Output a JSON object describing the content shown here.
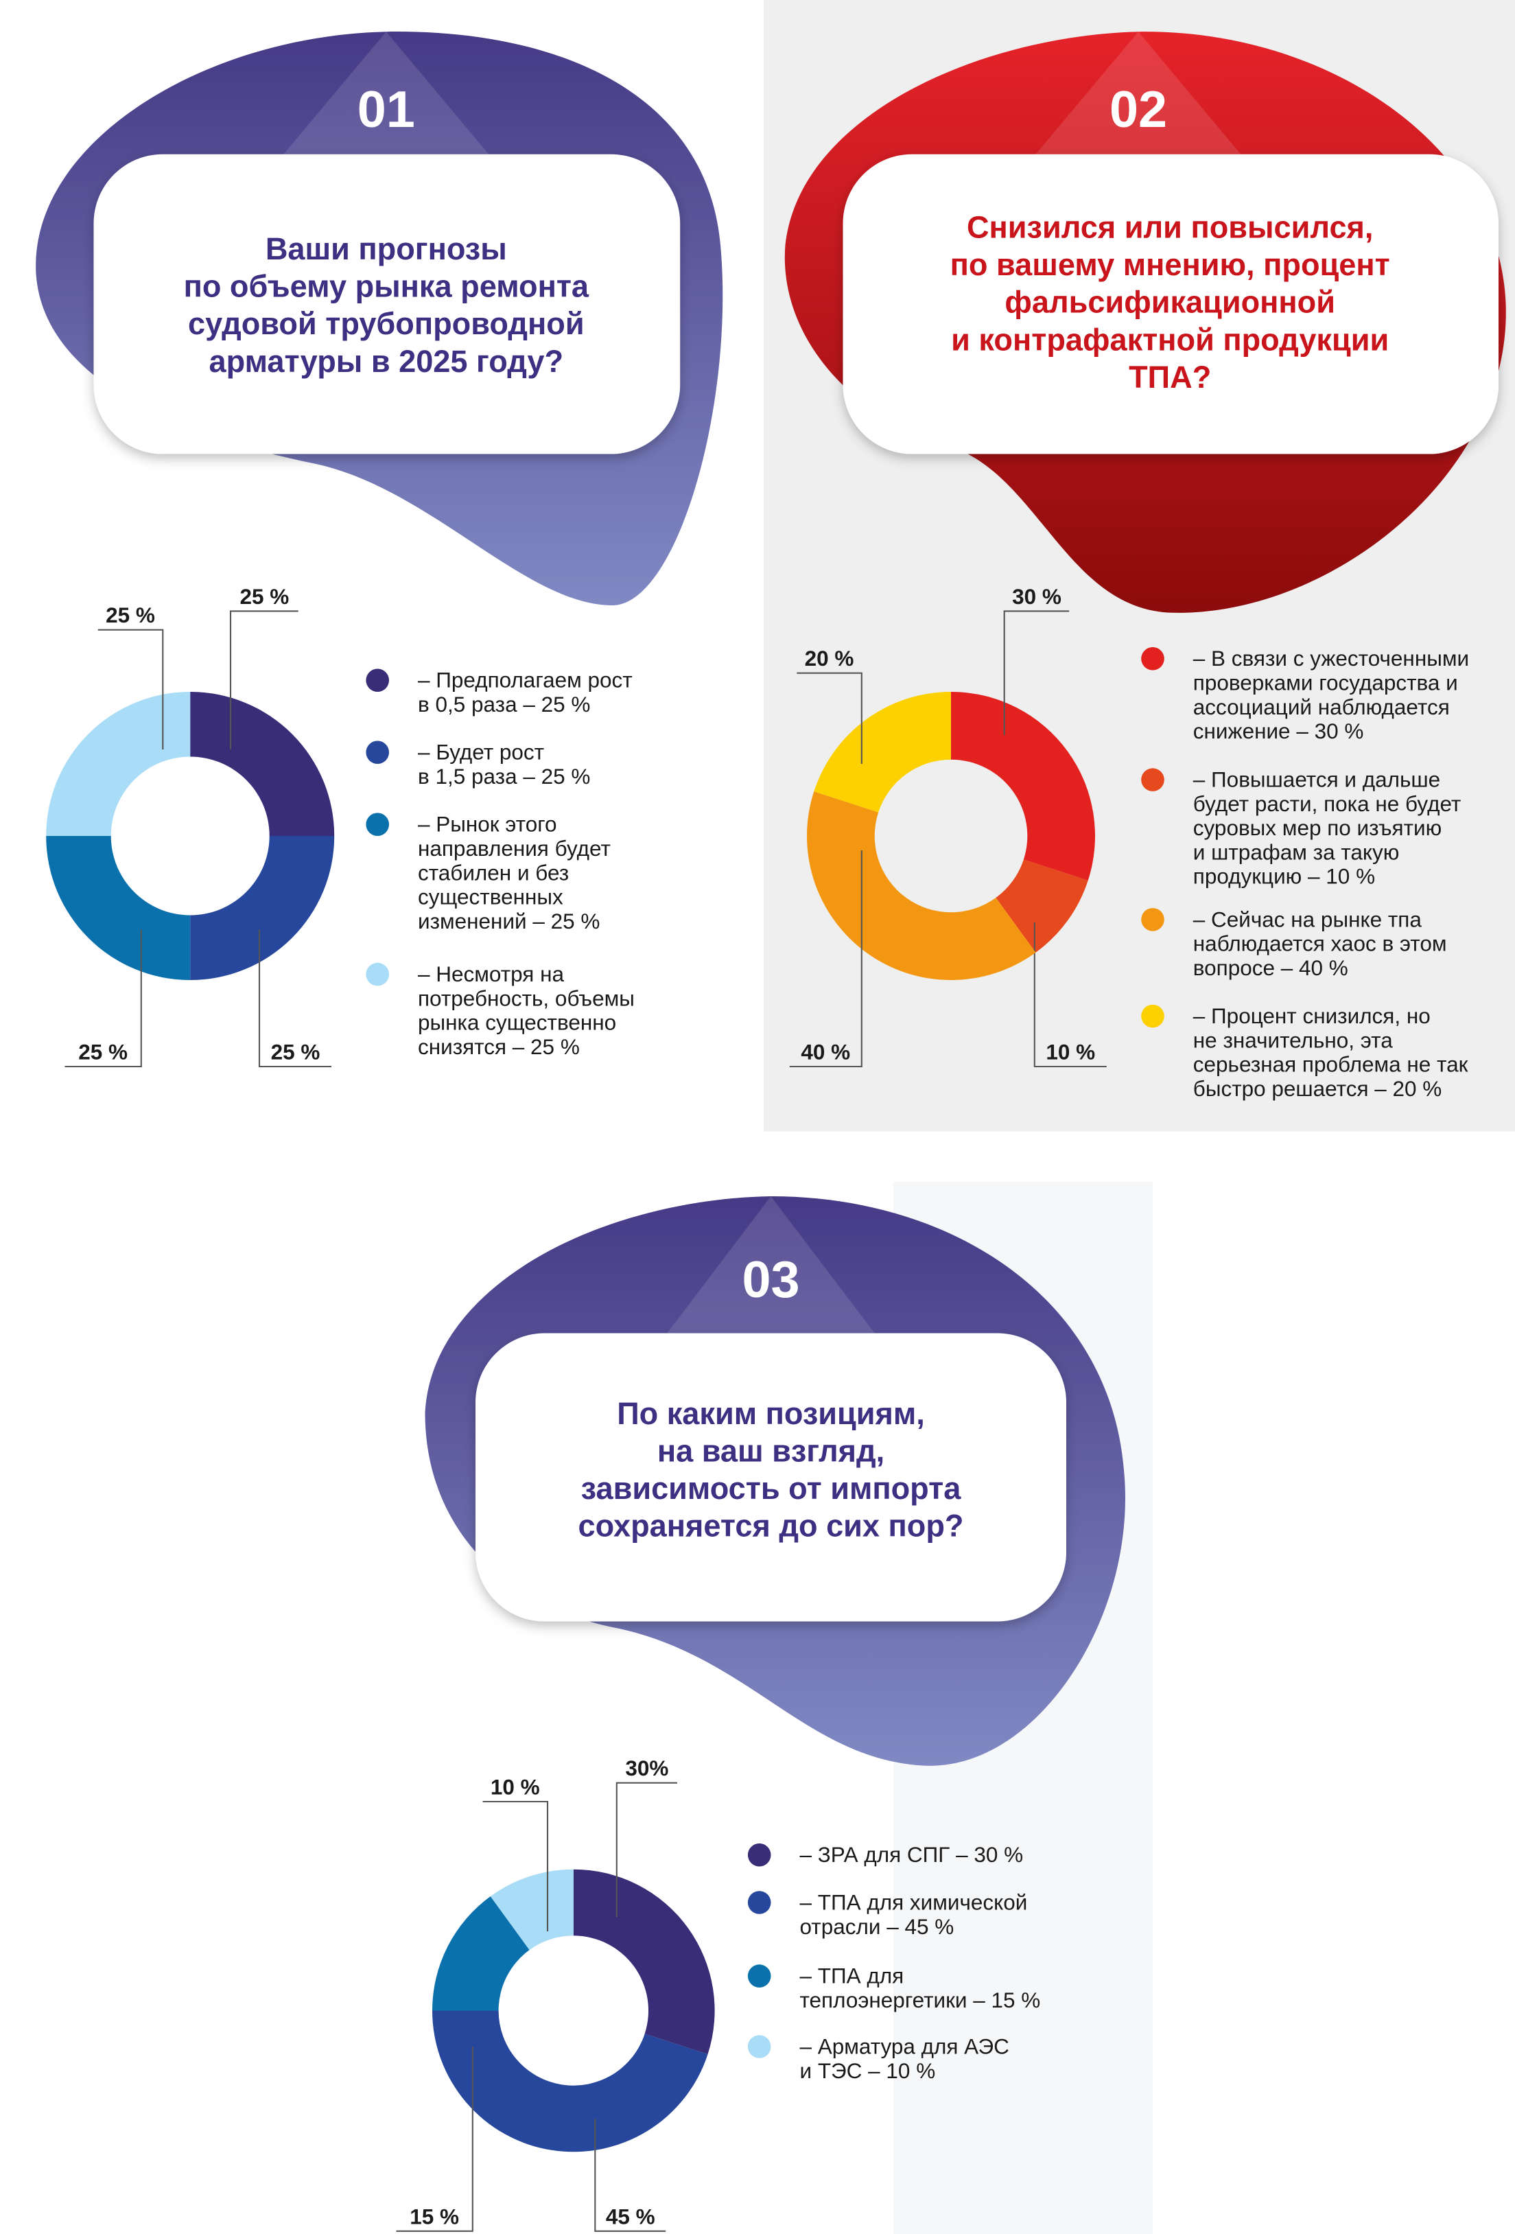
{
  "chart_data": [
    {
      "type": "pie",
      "number": "01",
      "title": "Ваши прогнозы\nпо объему рынка ремонта\nсудовой трубопроводной\nарматуры в 2025 году?",
      "categories": [
        "– Предполагаем рост\nв 0,5 раза – 25 %",
        "– Будет рост\nв 1,5 раза – 25 %",
        "– Рынок этого\nнаправления будет\nстабилен и без\nсущественных\nизменений – 25 %",
        "– Несмотря на\nпотребность, объемы\nрынка существенно\nснизятся – 25 %"
      ],
      "values": [
        25,
        25,
        25,
        25
      ],
      "value_labels": [
        "25 %",
        "25 %",
        "25 %",
        "25 %"
      ],
      "colors": [
        "#3a2d78",
        "#26479b",
        "#0a71ad",
        "#a9dcf6"
      ]
    },
    {
      "type": "pie",
      "number": "02",
      "title": "Снизился или повысился,\nпо вашему мнению, процент\nфальсификационной\nи контрафактной продукции\nТПА?",
      "categories": [
        "– В связи с ужесточенными\nпроверками государства и\nассоциаций наблюдается\nснижение – 30 %",
        "– Повышается и дальше\nбудет расти, пока не будет\nсуровых мер по изъятию\nи штрафам за такую\nпродукцию – 10 %",
        "– Сейчас на рынке тпа\nнаблюдается хаос в этом\nвопросе – 40 %",
        "– Процент снизился, но\nне значительно, эта\nсерьезная проблема не так\nбыстро решается – 20 %"
      ],
      "values": [
        30,
        10,
        40,
        20
      ],
      "value_labels": [
        "30 %",
        "10 %",
        "40 %",
        "20 %"
      ],
      "colors": [
        "#e32220",
        "#e6491e",
        "#f39712",
        "#fdd000"
      ]
    },
    {
      "type": "pie",
      "number": "03",
      "title": "По каким позициям,\nна ваш взгляд,\nзависимость от импорта\nсохраняется до сих пор?",
      "categories": [
        "– ЗРА для СПГ – 30 %",
        "– ТПА для химической\nотрасли – 45 %",
        "– ТПА для\nтеплоэнергетики – 15 %",
        "– Арматура для АЭС\nи ТЭС – 10 %"
      ],
      "values": [
        30,
        45,
        15,
        10
      ],
      "value_labels": [
        "30%",
        "45 %",
        "15 %",
        "10 %"
      ],
      "colors": [
        "#3a2d78",
        "#26479b",
        "#0a71ad",
        "#a9dcf6"
      ]
    }
  ]
}
